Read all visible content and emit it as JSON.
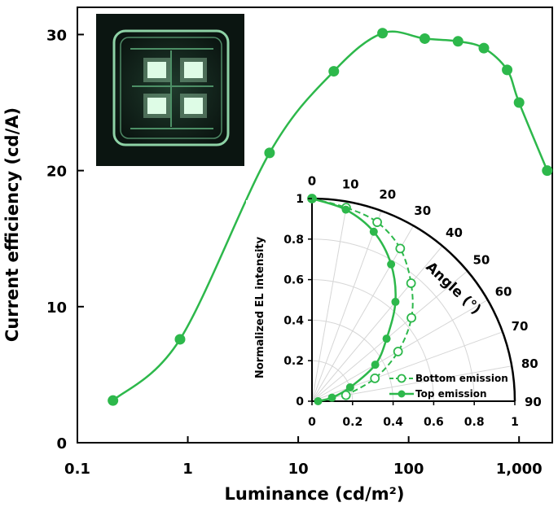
{
  "chart_data": [
    {
      "type": "line",
      "xlabel": "Luminance (cd/m²)",
      "ylabel": "Current efficiency (cd/A)",
      "x_scale": "log",
      "xlim": [
        0.1,
        2000
      ],
      "ylim": [
        0,
        32
      ],
      "x_ticks": [
        "0.1",
        "1",
        "10",
        "100",
        "1,000"
      ],
      "y_ticks": [
        "0",
        "10",
        "20",
        "30"
      ],
      "marker_color": "#2db84b",
      "series": [
        {
          "x": [
            0.21,
            0.85,
            5.5,
            21,
            58,
            140,
            280,
            480,
            780,
            1000,
            1800
          ],
          "y": [
            3.1,
            7.6,
            21.3,
            27.3,
            30.1,
            29.7,
            29.5,
            29.0,
            27.4,
            25.0,
            20.0
          ]
        }
      ]
    },
    {
      "type": "polar",
      "ylabel": "Normalized EL intensity",
      "angle_label": "Angle (°)",
      "angle_ticks": [
        "0",
        "10",
        "20",
        "30",
        "40",
        "50",
        "60",
        "70",
        "80",
        "90"
      ],
      "r_ticks_x": [
        "0",
        "0.2",
        "0.4",
        "0.6",
        "0.8",
        "1"
      ],
      "r_ticks_y": [
        "0",
        "0.2",
        "0.4",
        "0.6",
        "0.8",
        "1"
      ],
      "legend_position": "bottom-right",
      "series": [
        {
          "name": "Bottom emission",
          "marker": "open-circle",
          "line": "dashed",
          "angles": [
            0,
            10,
            20,
            30,
            40,
            50,
            60,
            70,
            80
          ],
          "r": [
            1.0,
            0.97,
            0.94,
            0.87,
            0.76,
            0.64,
            0.49,
            0.33,
            0.17
          ]
        },
        {
          "name": "Top emission",
          "marker": "filled-circle",
          "line": "solid",
          "angles": [
            0,
            10,
            20,
            30,
            40,
            50,
            60,
            70,
            80,
            90
          ],
          "r": [
            1.0,
            0.96,
            0.89,
            0.78,
            0.64,
            0.48,
            0.36,
            0.2,
            0.1,
            0.03
          ]
        }
      ]
    }
  ]
}
